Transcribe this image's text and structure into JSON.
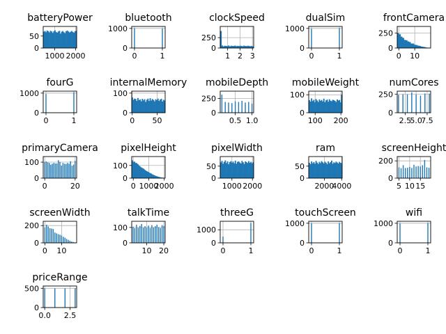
{
  "figure": {
    "background": "#ffffff"
  },
  "style": {
    "bar_color": "#1f77b4",
    "grid_color": "#b0b0b0",
    "axis_color": "#000000"
  },
  "chart_data": [
    {
      "type": "bar",
      "title": "batteryPower",
      "x_range": [
        450,
        2050
      ],
      "ylim": [
        0,
        90
      ],
      "grid": true,
      "xticks": [
        1000,
        2000
      ],
      "xtick_labels": [
        "1000",
        "2000"
      ],
      "yticks": [
        0,
        50
      ],
      "ytick_labels": [
        "0",
        "50"
      ],
      "values": [
        68,
        71,
        66,
        73,
        70,
        65,
        72,
        69,
        63,
        70,
        74,
        67,
        64,
        69,
        72,
        60,
        68,
        71,
        66,
        62,
        70,
        73,
        69,
        65,
        68,
        71,
        67,
        64,
        70,
        72
      ]
    },
    {
      "type": "bar",
      "title": "bluetooth",
      "x_range": [
        -0.1,
        1.1
      ],
      "ylim": [
        0,
        1100
      ],
      "grid": true,
      "xticks": [
        0,
        1
      ],
      "xtick_labels": [
        "0",
        "1"
      ],
      "yticks": [
        0,
        1000
      ],
      "ytick_labels": [
        "0",
        "1000"
      ],
      "bars": [
        {
          "x": 0,
          "value": 1010
        },
        {
          "x": 1,
          "value": 990
        }
      ]
    },
    {
      "type": "bar",
      "title": "clockSpeed",
      "x_range": [
        0.4,
        3.1
      ],
      "ylim": [
        0,
        520
      ],
      "grid": true,
      "xticks": [
        1,
        2,
        3
      ],
      "xtick_labels": [
        "1",
        "2",
        "3"
      ],
      "yticks": [
        0,
        250
      ],
      "ytick_labels": [
        "0",
        "250"
      ],
      "values": [
        410,
        60,
        40,
        55,
        50,
        45,
        60,
        40,
        55,
        50,
        48,
        58,
        45,
        52,
        47,
        55,
        50,
        44,
        58,
        50,
        46,
        55,
        48,
        42,
        50,
        38
      ]
    },
    {
      "type": "bar",
      "title": "dualSim",
      "x_range": [
        -0.1,
        1.1
      ],
      "ylim": [
        0,
        1100
      ],
      "grid": true,
      "xticks": [
        0,
        1
      ],
      "xtick_labels": [
        "0",
        "1"
      ],
      "yticks": [
        0,
        1000
      ],
      "ytick_labels": [
        "0",
        "1000"
      ],
      "bars": [
        {
          "x": 0,
          "value": 981
        },
        {
          "x": 1,
          "value": 1019
        }
      ]
    },
    {
      "type": "bar",
      "title": "frontCamera",
      "x_range": [
        -1,
        20
      ],
      "ylim": [
        0,
        360
      ],
      "grid": true,
      "xticks": [
        0,
        10
      ],
      "xtick_labels": [
        "0",
        "10"
      ],
      "yticks": [
        0,
        250
      ],
      "ytick_labels": [
        "0",
        "250"
      ],
      "values": [
        250,
        230,
        190,
        170,
        135,
        130,
        110,
        100,
        75,
        75,
        55,
        50,
        40,
        35,
        25,
        20,
        15,
        8,
        5,
        3
      ]
    },
    {
      "type": "bar",
      "title": "fourG",
      "x_range": [
        -0.1,
        1.1
      ],
      "ylim": [
        0,
        1100
      ],
      "grid": true,
      "xticks": [
        0,
        1
      ],
      "xtick_labels": [
        "0",
        "1"
      ],
      "yticks": [
        0,
        1000
      ],
      "ytick_labels": [
        "0",
        "1000"
      ],
      "bars": [
        {
          "x": 0,
          "value": 957
        },
        {
          "x": 1,
          "value": 1043
        }
      ]
    },
    {
      "type": "bar",
      "title": "internalMemory",
      "x_range": [
        -1,
        66
      ],
      "ylim": [
        0,
        110
      ],
      "grid": true,
      "xticks": [
        0,
        50
      ],
      "xtick_labels": [
        "0",
        "50"
      ],
      "yticks": [
        0,
        100
      ],
      "ytick_labels": [
        "0",
        "100"
      ],
      "values": [
        78,
        66,
        72,
        70,
        60,
        75,
        64,
        68,
        58,
        71,
        63,
        69,
        55,
        66,
        72,
        60,
        74,
        62,
        70,
        65,
        58,
        69,
        64,
        72,
        60,
        67,
        71,
        57,
        66,
        62
      ]
    },
    {
      "type": "bar",
      "title": "mobileDepth",
      "x_range": [
        0.05,
        1.05
      ],
      "ylim": [
        0,
        380
      ],
      "grid": true,
      "xticks": [
        0.5,
        1.0
      ],
      "xtick_labels": [
        "0.5",
        "1.0"
      ],
      "yticks": [
        0,
        250
      ],
      "ytick_labels": [
        "0",
        "250"
      ],
      "bars": [
        {
          "x": 0.1,
          "value": 320
        },
        {
          "x": 0.2,
          "value": 190
        },
        {
          "x": 0.3,
          "value": 180
        },
        {
          "x": 0.4,
          "value": 170
        },
        {
          "x": 0.5,
          "value": 200
        },
        {
          "x": 0.6,
          "value": 190
        },
        {
          "x": 0.7,
          "value": 210
        },
        {
          "x": 0.8,
          "value": 180
        },
        {
          "x": 0.9,
          "value": 190
        },
        {
          "x": 1.0,
          "value": 160
        }
      ]
    },
    {
      "type": "bar",
      "title": "mobileWeight",
      "x_range": [
        75,
        205
      ],
      "ylim": [
        0,
        120
      ],
      "grid": true,
      "xticks": [
        100,
        200
      ],
      "xtick_labels": [
        "100",
        "200"
      ],
      "yticks": [
        0,
        100
      ],
      "ytick_labels": [
        "0",
        "100"
      ],
      "values": [
        70,
        62,
        80,
        65,
        72,
        58,
        76,
        68,
        60,
        74,
        66,
        71,
        63,
        78,
        59,
        69,
        73,
        61,
        75,
        67,
        64,
        72,
        70,
        66,
        60,
        74,
        68,
        71,
        58,
        100
      ]
    },
    {
      "type": "bar",
      "title": "numCores",
      "x_range": [
        0.7,
        8.3
      ],
      "ylim": [
        0,
        290
      ],
      "grid": true,
      "xticks": [
        2.5,
        5.0,
        7.5
      ],
      "xtick_labels": [
        "2.5",
        "5.0",
        "7.5"
      ],
      "yticks": [
        0,
        250
      ],
      "ytick_labels": [
        "0",
        "250"
      ],
      "bars": [
        {
          "x": 1,
          "value": 242
        },
        {
          "x": 2,
          "value": 247
        },
        {
          "x": 3,
          "value": 246
        },
        {
          "x": 4,
          "value": 274
        },
        {
          "x": 5,
          "value": 246
        },
        {
          "x": 6,
          "value": 230
        },
        {
          "x": 7,
          "value": 259
        },
        {
          "x": 8,
          "value": 256
        }
      ]
    },
    {
      "type": "bar",
      "title": "primaryCamera",
      "x_range": [
        -1,
        21
      ],
      "ylim": [
        0,
        135
      ],
      "grid": true,
      "xticks": [
        0,
        20
      ],
      "xtick_labels": [
        "0",
        "20"
      ],
      "yticks": [
        0,
        100
      ],
      "ytick_labels": [
        "0",
        "100"
      ],
      "bars": [
        {
          "x": 0,
          "value": 101
        },
        {
          "x": 1,
          "value": 104
        },
        {
          "x": 2,
          "value": 99
        },
        {
          "x": 3,
          "value": 95
        },
        {
          "x": 4,
          "value": 84
        },
        {
          "x": 5,
          "value": 90
        },
        {
          "x": 6,
          "value": 95
        },
        {
          "x": 7,
          "value": 92
        },
        {
          "x": 8,
          "value": 92
        },
        {
          "x": 9,
          "value": 112
        },
        {
          "x": 10,
          "value": 101
        },
        {
          "x": 11,
          "value": 79
        },
        {
          "x": 12,
          "value": 95
        },
        {
          "x": 13,
          "value": 90
        },
        {
          "x": 14,
          "value": 89
        },
        {
          "x": 15,
          "value": 95
        },
        {
          "x": 16,
          "value": 90
        },
        {
          "x": 17,
          "value": 106
        },
        {
          "x": 18,
          "value": 78
        },
        {
          "x": 19,
          "value": 85
        },
        {
          "x": 20,
          "value": 108
        }
      ]
    },
    {
      "type": "bar",
      "title": "pixelHeight",
      "x_range": [
        -100,
        2060
      ],
      "ylim": [
        0,
        170
      ],
      "grid": true,
      "xticks": [
        0,
        1000,
        2000
      ],
      "xtick_labels": [
        "0",
        "1000",
        "2000"
      ],
      "yticks": [
        0,
        100
      ],
      "ytick_labels": [
        "0",
        "100"
      ],
      "values": [
        140,
        128,
        130,
        120,
        118,
        110,
        100,
        92,
        85,
        80,
        75,
        68,
        60,
        55,
        50,
        45,
        40,
        36,
        30,
        26,
        22,
        18,
        15,
        12,
        9,
        7,
        5,
        4,
        3,
        2
      ]
    },
    {
      "type": "bar",
      "title": "pixelWidth",
      "x_range": [
        430,
        2060
      ],
      "ylim": [
        0,
        90
      ],
      "grid": true,
      "xticks": [
        1000,
        2000
      ],
      "xtick_labels": [
        "1000",
        "2000"
      ],
      "yticks": [
        0,
        50
      ],
      "ytick_labels": [
        "0",
        "50"
      ],
      "values": [
        66,
        72,
        60,
        68,
        74,
        63,
        70,
        58,
        67,
        71,
        64,
        69,
        62,
        73,
        60,
        68,
        70,
        65,
        61,
        72,
        66,
        59,
        70,
        67,
        63,
        71,
        64,
        68,
        62,
        66
      ]
    },
    {
      "type": "bar",
      "title": "ram",
      "x_range": [
        200,
        4050
      ],
      "ylim": [
        0,
        90
      ],
      "grid": true,
      "xticks": [
        2000,
        4000
      ],
      "xtick_labels": [
        "2000",
        "4000"
      ],
      "yticks": [
        0,
        50
      ],
      "ytick_labels": [
        "0",
        "50"
      ],
      "values": [
        64,
        58,
        70,
        62,
        67,
        60,
        72,
        65,
        59,
        68,
        63,
        71,
        66,
        61,
        69,
        64,
        58,
        70,
        62,
        67,
        73,
        60,
        66,
        63,
        69,
        65,
        61,
        68,
        64,
        62
      ]
    },
    {
      "type": "bar",
      "title": "screenHeight",
      "x_range": [
        4.2,
        19.8
      ],
      "ylim": [
        0,
        250
      ],
      "grid": true,
      "xticks": [
        5,
        10,
        15
      ],
      "xtick_labels": [
        "5",
        "10",
        "15"
      ],
      "yticks": [
        0,
        200
      ],
      "ytick_labels": [
        "0",
        "200"
      ],
      "bars": [
        {
          "x": 5,
          "value": 125
        },
        {
          "x": 6,
          "value": 115
        },
        {
          "x": 7,
          "value": 150
        },
        {
          "x": 8,
          "value": 118
        },
        {
          "x": 9,
          "value": 120
        },
        {
          "x": 10,
          "value": 130
        },
        {
          "x": 11,
          "value": 118
        },
        {
          "x": 12,
          "value": 155
        },
        {
          "x": 13,
          "value": 135
        },
        {
          "x": 14,
          "value": 140
        },
        {
          "x": 15,
          "value": 135
        },
        {
          "x": 16,
          "value": 150
        },
        {
          "x": 17,
          "value": 210
        },
        {
          "x": 18,
          "value": 125
        },
        {
          "x": 19,
          "value": 120
        }
      ]
    },
    {
      "type": "bar",
      "title": "screenWidth",
      "x_range": [
        -1,
        19
      ],
      "ylim": [
        0,
        250
      ],
      "grid": true,
      "xticks": [
        0,
        10
      ],
      "xtick_labels": [
        "0",
        "10"
      ],
      "yticks": [
        0,
        200
      ],
      "ytick_labels": [
        "0",
        "200"
      ],
      "bars": [
        {
          "x": 0,
          "value": 180
        },
        {
          "x": 1,
          "value": 210
        },
        {
          "x": 2,
          "value": 190
        },
        {
          "x": 3,
          "value": 170
        },
        {
          "x": 4,
          "value": 165
        },
        {
          "x": 5,
          "value": 160
        },
        {
          "x": 6,
          "value": 120
        },
        {
          "x": 7,
          "value": 110
        },
        {
          "x": 8,
          "value": 100
        },
        {
          "x": 9,
          "value": 95
        },
        {
          "x": 10,
          "value": 85
        },
        {
          "x": 11,
          "value": 70
        },
        {
          "x": 12,
          "value": 60
        },
        {
          "x": 13,
          "value": 45
        },
        {
          "x": 14,
          "value": 35
        },
        {
          "x": 15,
          "value": 25
        },
        {
          "x": 16,
          "value": 15
        },
        {
          "x": 17,
          "value": 10
        },
        {
          "x": 18,
          "value": 5
        }
      ]
    },
    {
      "type": "bar",
      "title": "talkTime",
      "x_range": [
        1.2,
        20.8
      ],
      "ylim": [
        0,
        140
      ],
      "grid": true,
      "xticks": [
        10,
        20
      ],
      "xtick_labels": [
        "10",
        "20"
      ],
      "yticks": [
        0,
        100
      ],
      "ytick_labels": [
        "0",
        "100"
      ],
      "bars": [
        {
          "x": 2,
          "value": 105
        },
        {
          "x": 3,
          "value": 95
        },
        {
          "x": 4,
          "value": 118
        },
        {
          "x": 5,
          "value": 98
        },
        {
          "x": 6,
          "value": 110
        },
        {
          "x": 7,
          "value": 122
        },
        {
          "x": 8,
          "value": 98
        },
        {
          "x": 9,
          "value": 108
        },
        {
          "x": 10,
          "value": 98
        },
        {
          "x": 11,
          "value": 112
        },
        {
          "x": 12,
          "value": 96
        },
        {
          "x": 13,
          "value": 115
        },
        {
          "x": 14,
          "value": 100
        },
        {
          "x": 15,
          "value": 108
        },
        {
          "x": 16,
          "value": 118
        },
        {
          "x": 17,
          "value": 102
        },
        {
          "x": 18,
          "value": 96
        },
        {
          "x": 19,
          "value": 115
        },
        {
          "x": 20,
          "value": 110
        }
      ]
    },
    {
      "type": "bar",
      "title": "threeG",
      "x_range": [
        -0.1,
        1.1
      ],
      "ylim": [
        0,
        1650
      ],
      "grid": true,
      "xticks": [
        0,
        1
      ],
      "xtick_labels": [
        "0",
        "1"
      ],
      "yticks": [
        0,
        1000
      ],
      "ytick_labels": [
        "0",
        "1000"
      ],
      "bars": [
        {
          "x": 0,
          "value": 477
        },
        {
          "x": 1,
          "value": 1523
        }
      ]
    },
    {
      "type": "bar",
      "title": "touchScreen",
      "x_range": [
        -0.1,
        1.1
      ],
      "ylim": [
        0,
        1100
      ],
      "grid": true,
      "xticks": [
        0,
        1
      ],
      "xtick_labels": [
        "0",
        "1"
      ],
      "yticks": [
        0,
        1000
      ],
      "ytick_labels": [
        "0",
        "1000"
      ],
      "bars": [
        {
          "x": 0,
          "value": 994
        },
        {
          "x": 1,
          "value": 1006
        }
      ]
    },
    {
      "type": "bar",
      "title": "wifi",
      "x_range": [
        -0.1,
        1.1
      ],
      "ylim": [
        0,
        1100
      ],
      "grid": true,
      "xticks": [
        0,
        1
      ],
      "xtick_labels": [
        "0",
        "1"
      ],
      "yticks": [
        0,
        1000
      ],
      "ytick_labels": [
        "0",
        "1000"
      ],
      "bars": [
        {
          "x": 0,
          "value": 986
        },
        {
          "x": 1,
          "value": 1014
        }
      ]
    },
    {
      "type": "bar",
      "title": "priceRange",
      "x_range": [
        -0.15,
        3.15
      ],
      "ylim": [
        0,
        560
      ],
      "grid": true,
      "xticks": [
        0.0,
        2.5
      ],
      "xtick_labels": [
        "0.0",
        "2.5"
      ],
      "yticks": [
        0,
        500
      ],
      "ytick_labels": [
        "0",
        "500"
      ],
      "bars": [
        {
          "x": 0,
          "value": 500
        },
        {
          "x": 1,
          "value": 500
        },
        {
          "x": 2,
          "value": 500
        },
        {
          "x": 3,
          "value": 500
        }
      ]
    }
  ]
}
